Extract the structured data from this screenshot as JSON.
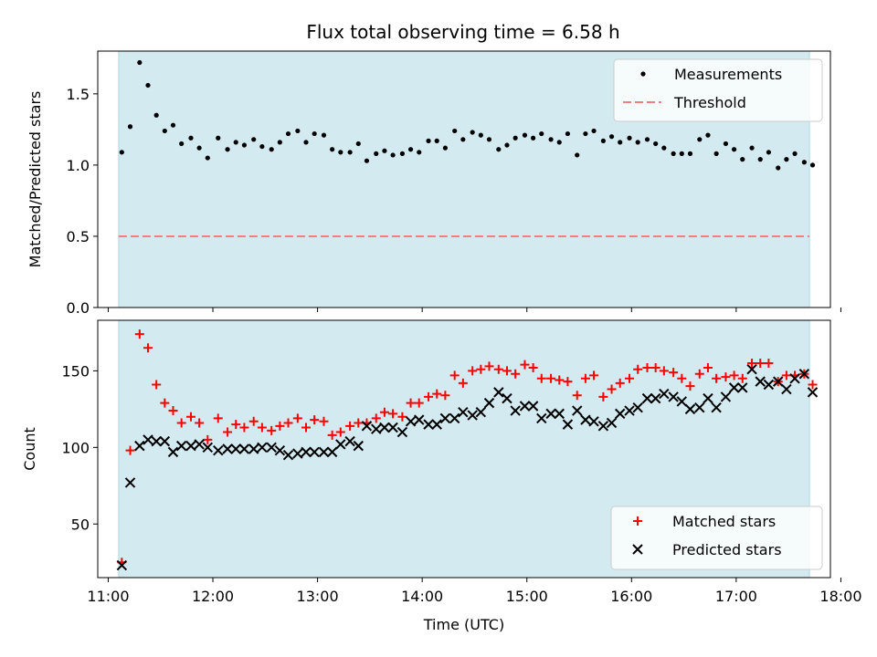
{
  "figure_title": "Flux total observing time = 6.58 h",
  "x_axis": {
    "label": "Time (UTC)",
    "ticks": [
      "11:00",
      "12:00",
      "13:00",
      "14:00",
      "15:00",
      "16:00",
      "17:00",
      "18:00"
    ],
    "range_hours": [
      10.9,
      17.9
    ]
  },
  "observing_window_hours": [
    11.1,
    17.7
  ],
  "colors": {
    "shade": "#d3eaf0",
    "measurement": "#000000",
    "threshold": "#f08080",
    "matched": "#ff0000",
    "predicted": "#000000"
  },
  "chart_data": [
    {
      "type": "scatter",
      "ylabel": "Matched/Predicted stars",
      "ylim": [
        0,
        1.8
      ],
      "yticks": [
        "0.0",
        "0.5",
        "1.0",
        "1.5"
      ],
      "grid": false,
      "legend": {
        "placement": "top-right",
        "entries": [
          {
            "label": "Measurements",
            "marker": "dot"
          },
          {
            "label": "Threshold",
            "marker": "dashed-line"
          }
        ]
      },
      "threshold": 0.5,
      "series": [
        {
          "name": "Measurements",
          "x": [
            11.13,
            11.21,
            11.3,
            11.38,
            11.46,
            11.54,
            11.62,
            11.7,
            11.79,
            11.87,
            11.95,
            12.05,
            12.14,
            12.22,
            12.3,
            12.39,
            12.47,
            12.56,
            12.64,
            12.72,
            12.81,
            12.89,
            12.97,
            13.06,
            13.14,
            13.22,
            13.31,
            13.39,
            13.47,
            13.56,
            13.64,
            13.72,
            13.81,
            13.89,
            13.97,
            14.06,
            14.14,
            14.22,
            14.31,
            14.39,
            14.48,
            14.56,
            14.64,
            14.73,
            14.81,
            14.89,
            14.98,
            15.06,
            15.14,
            15.23,
            15.31,
            15.39,
            15.48,
            15.56,
            15.64,
            15.73,
            15.81,
            15.89,
            15.98,
            16.06,
            16.15,
            16.23,
            16.31,
            16.4,
            16.48,
            16.56,
            16.65,
            16.73,
            16.81,
            16.9,
            16.98,
            17.06,
            17.15,
            17.23,
            17.31,
            17.4,
            17.48,
            17.56,
            17.65,
            17.73
          ],
          "y": [
            1.09,
            1.27,
            1.72,
            1.56,
            1.35,
            1.24,
            1.28,
            1.15,
            1.19,
            1.12,
            1.05,
            1.19,
            1.11,
            1.16,
            1.14,
            1.18,
            1.13,
            1.11,
            1.16,
            1.22,
            1.24,
            1.16,
            1.22,
            1.21,
            1.11,
            1.09,
            1.09,
            1.15,
            1.03,
            1.08,
            1.1,
            1.07,
            1.08,
            1.11,
            1.09,
            1.17,
            1.17,
            1.12,
            1.24,
            1.18,
            1.23,
            1.21,
            1.18,
            1.11,
            1.14,
            1.19,
            1.21,
            1.19,
            1.22,
            1.18,
            1.16,
            1.22,
            1.07,
            1.22,
            1.24,
            1.17,
            1.2,
            1.16,
            1.19,
            1.16,
            1.18,
            1.15,
            1.12,
            1.08,
            1.08,
            1.08,
            1.18,
            1.21,
            1.08,
            1.15,
            1.11,
            1.04,
            1.12,
            1.04,
            1.09,
            0.98,
            1.04,
            1.08,
            1.02,
            1.0
          ]
        }
      ]
    },
    {
      "type": "scatter",
      "ylabel": "Count",
      "ylim": [
        15,
        183
      ],
      "yticks": [
        "50",
        "100",
        "150"
      ],
      "xlabel": "Time (UTC)",
      "grid": false,
      "legend": {
        "placement": "bottom-right",
        "entries": [
          {
            "label": "Matched stars",
            "marker": "plus"
          },
          {
            "label": "Predicted stars",
            "marker": "x"
          }
        ]
      },
      "series": [
        {
          "name": "Matched stars",
          "marker": "plus",
          "x": [
            11.13,
            11.21,
            11.3,
            11.38,
            11.46,
            11.54,
            11.62,
            11.7,
            11.79,
            11.87,
            11.95,
            12.05,
            12.14,
            12.22,
            12.3,
            12.39,
            12.47,
            12.56,
            12.64,
            12.72,
            12.81,
            12.89,
            12.97,
            13.06,
            13.14,
            13.22,
            13.31,
            13.39,
            13.47,
            13.56,
            13.64,
            13.72,
            13.81,
            13.89,
            13.97,
            14.06,
            14.14,
            14.22,
            14.31,
            14.39,
            14.48,
            14.56,
            14.64,
            14.73,
            14.81,
            14.89,
            14.98,
            15.06,
            15.14,
            15.23,
            15.31,
            15.39,
            15.48,
            15.56,
            15.64,
            15.73,
            15.81,
            15.89,
            15.98,
            16.06,
            16.15,
            16.23,
            16.31,
            16.4,
            16.48,
            16.56,
            16.65,
            16.73,
            16.81,
            16.9,
            16.98,
            17.06,
            17.15,
            17.23,
            17.31,
            17.4,
            17.48,
            17.56,
            17.65,
            17.73
          ],
          "y": [
            25,
            98,
            174,
            165,
            141,
            129,
            124,
            116,
            120,
            116,
            105,
            119,
            110,
            115,
            113,
            117,
            113,
            111,
            114,
            116,
            119,
            113,
            118,
            117,
            108,
            110,
            114,
            116,
            116,
            119,
            123,
            122,
            120,
            129,
            129,
            133,
            135,
            134,
            147,
            142,
            150,
            151,
            153,
            151,
            150,
            148,
            154,
            152,
            145,
            145,
            144,
            143,
            134,
            145,
            147,
            133,
            138,
            142,
            145,
            151,
            152,
            152,
            150,
            149,
            145,
            140,
            148,
            152,
            145,
            146,
            147,
            145,
            155,
            155,
            155,
            143,
            147,
            147,
            148,
            141
          ]
        },
        {
          "name": "Predicted stars",
          "marker": "x",
          "x": [
            11.13,
            11.21,
            11.3,
            11.38,
            11.46,
            11.54,
            11.62,
            11.7,
            11.79,
            11.87,
            11.95,
            12.05,
            12.14,
            12.22,
            12.3,
            12.39,
            12.47,
            12.56,
            12.64,
            12.72,
            12.81,
            12.89,
            12.97,
            13.06,
            13.14,
            13.22,
            13.31,
            13.39,
            13.47,
            13.56,
            13.64,
            13.72,
            13.81,
            13.89,
            13.97,
            14.06,
            14.14,
            14.22,
            14.31,
            14.39,
            14.48,
            14.56,
            14.64,
            14.73,
            14.81,
            14.89,
            14.98,
            15.06,
            15.14,
            15.23,
            15.31,
            15.39,
            15.48,
            15.56,
            15.64,
            15.73,
            15.81,
            15.89,
            15.98,
            16.06,
            16.15,
            16.23,
            16.31,
            16.4,
            16.48,
            16.56,
            16.65,
            16.73,
            16.81,
            16.9,
            16.98,
            17.06,
            17.15,
            17.23,
            17.31,
            17.4,
            17.48,
            17.56,
            17.65,
            17.73
          ],
          "y": [
            23,
            77,
            101,
            105,
            104,
            104,
            97,
            101,
            101,
            102,
            100,
            98,
            99,
            99,
            99,
            99,
            100,
            100,
            98,
            95,
            96,
            97,
            97,
            97,
            97,
            102,
            104,
            101,
            114,
            112,
            113,
            113,
            110,
            117,
            118,
            115,
            115,
            119,
            119,
            123,
            121,
            123,
            129,
            136,
            132,
            124,
            127,
            127,
            119,
            122,
            122,
            115,
            124,
            118,
            117,
            114,
            116,
            122,
            124,
            126,
            132,
            132,
            135,
            133,
            130,
            125,
            126,
            132,
            126,
            133,
            139,
            139,
            151,
            143,
            141,
            143,
            138,
            145,
            148,
            136
          ]
        }
      ]
    }
  ]
}
